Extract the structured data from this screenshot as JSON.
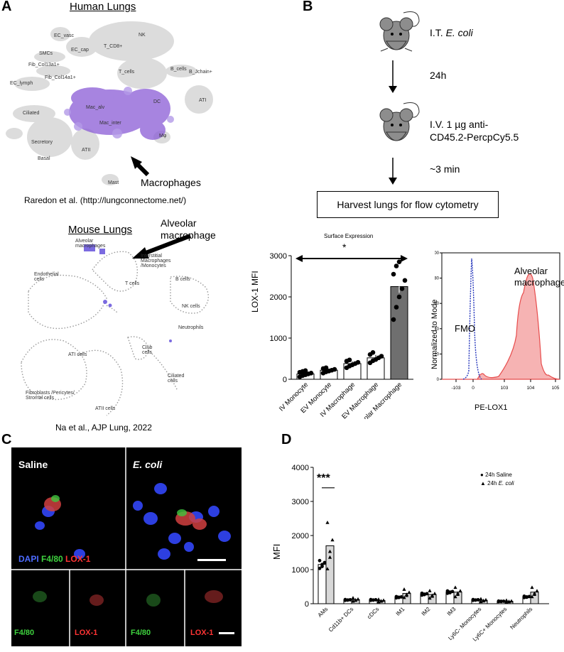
{
  "panels": {
    "a": "A",
    "b": "B",
    "c": "C",
    "d": "D"
  },
  "panel_a": {
    "human_title": "Human Lungs",
    "human_clusters": [
      "EC_vasc",
      "NK",
      "EC_cap",
      "T_CD8+",
      "SMCs",
      "Fib_Col13a1+",
      "Fib_Col14a1+",
      "T_cells",
      "B_cells",
      "B_Jchain+",
      "EC_lymph",
      "ATI",
      "Ciliated",
      "Mac_alv",
      "DC",
      "Mac_inter",
      "Mφ",
      "Secretory",
      "Basal",
      "ATII",
      "Mast"
    ],
    "human_arrow_label": "Macrophages",
    "human_credit": "Raredon et al. (http://lungconnectome.net/)",
    "mouse_title": "Mouse Lungs",
    "mouse_clusters": [
      "Alveolar macrophages",
      "Interstitial Macrophages /Monocytes",
      "Endothelial cells",
      "B cells",
      "T cells",
      "NK cells",
      "Neutrophils",
      "ATI cells",
      "Club cells",
      "Ciliated cells",
      "Fibroblasts /Pericytes/ Stromal cells",
      "ATII cells"
    ],
    "mouse_arrow_label": "Alveolar macrophage",
    "mouse_credit": "Na et al., AJP Lung, 2022"
  },
  "panel_b": {
    "step1": "I.T. E. coli",
    "step1_plain": "I.T. ",
    "step1_italic": "E. coli",
    "wait1": "24h",
    "step2_line1": "I.V. 1 µg anti-",
    "step2_line2": "CD45.2-PercpCy5.5",
    "wait2": "~3 min",
    "harvest": "Harvest lungs for flow cytometry"
  },
  "panel_b_bar": {
    "chart_data": {
      "type": "bar",
      "title": "Surface Expression",
      "significance": "*",
      "ylabel": "LOX-1 MFI",
      "ylim": [
        0,
        3000
      ],
      "yticks": [
        0,
        1000,
        2000,
        3000
      ],
      "categories": [
        "IV Monocyte",
        "EV Monocyte",
        "IV Macrophage",
        "EV Macrophage",
        "Alveolar Macrophage"
      ],
      "values": [
        130,
        220,
        380,
        520,
        2250
      ],
      "errors": [
        40,
        40,
        50,
        70,
        150
      ],
      "points": [
        [
          60,
          90,
          110,
          130,
          150,
          170,
          190,
          210
        ],
        [
          150,
          180,
          200,
          220,
          240,
          260,
          280
        ],
        [
          280,
          320,
          350,
          380,
          410,
          440,
          470
        ],
        [
          400,
          450,
          480,
          520,
          560,
          600,
          650
        ],
        [
          1450,
          1750,
          2000,
          2200,
          2400,
          2550,
          2750,
          2850
        ]
      ],
      "colors": {
        "normal": "#ffffff",
        "highlight": "#6f6f6f"
      }
    }
  },
  "panel_b_hist": {
    "chart_data": {
      "type": "area",
      "ylabel": "Normalized to Mode",
      "xlabel": "PE-LOX1",
      "yticks": [
        "0",
        "20",
        "40",
        "60",
        "80",
        "100"
      ],
      "xticks": [
        "-10^3",
        "0",
        "10^3",
        "10^4",
        "10^5"
      ],
      "series": [
        {
          "name": "FMO",
          "color": "#2233bb"
        },
        {
          "name": "Alveolar macrophage",
          "color": "#e74c4c"
        }
      ]
    }
  },
  "panel_c": {
    "saline": "Saline",
    "ecoli": "E. coli",
    "legend": {
      "dapi": "DAPI",
      "f480": "F4/80",
      "lox1": "LOX-1"
    },
    "sub_f480": "F4/80",
    "sub_lox1": "LOX-1"
  },
  "panel_d": {
    "chart_data": {
      "type": "bar",
      "ylabel": "MFI",
      "ylim": [
        0,
        4000
      ],
      "yticks": [
        0,
        1000,
        2000,
        3000,
        4000
      ],
      "significance": "***",
      "categories": [
        "AMs",
        "Cd11b+ DCs",
        "cDCs",
        "IM1",
        "IM2",
        "IM3",
        "Ly6C- Monocytes",
        "Ly6C+ Monocytes",
        "Neutrophils"
      ],
      "series": [
        {
          "name": "24h Saline",
          "values": [
            1150,
            110,
            110,
            190,
            280,
            340,
            110,
            70,
            200
          ]
        },
        {
          "name": "24h E. coli",
          "values": [
            1700,
            120,
            90,
            300,
            270,
            340,
            100,
            70,
            340
          ]
        }
      ],
      "legend": [
        "24h Saline",
        "24h E. coli"
      ],
      "legend_plain": "24h ",
      "legend_italic": "E. coli"
    }
  }
}
